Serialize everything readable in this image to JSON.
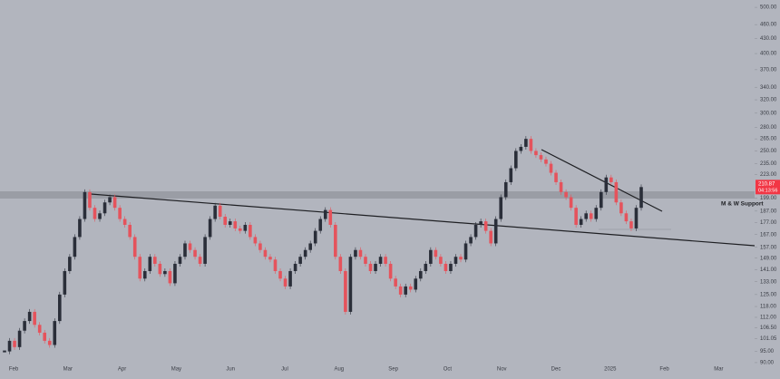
{
  "chart_data": {
    "type": "candlestick",
    "log_scale": true,
    "ylim": [
      85,
      518
    ],
    "yticks": [
      {
        "value": 500,
        "label": "500.00"
      },
      {
        "value": 460,
        "label": "460.00"
      },
      {
        "value": 430,
        "label": "430.00"
      },
      {
        "value": 400,
        "label": "400.00"
      },
      {
        "value": 370,
        "label": "370.00"
      },
      {
        "value": 340,
        "label": "340.00"
      },
      {
        "value": 320,
        "label": "320.00"
      },
      {
        "value": 300,
        "label": "300.00"
      },
      {
        "value": 280,
        "label": "280.00"
      },
      {
        "value": 265,
        "label": "265.00"
      },
      {
        "value": 250,
        "label": "250.00"
      },
      {
        "value": 235,
        "label": "235.00"
      },
      {
        "value": 223,
        "label": "223.00"
      },
      {
        "value": 199,
        "label": "199.00"
      },
      {
        "value": 187,
        "label": "187.00"
      },
      {
        "value": 177,
        "label": "177.00"
      },
      {
        "value": 167,
        "label": "167.00"
      },
      {
        "value": 157,
        "label": "157.00"
      },
      {
        "value": 149,
        "label": "149.00"
      },
      {
        "value": 141,
        "label": "141.00"
      },
      {
        "value": 133,
        "label": "133.00"
      },
      {
        "value": 125,
        "label": "125.00"
      },
      {
        "value": 118,
        "label": "118.00"
      },
      {
        "value": 112,
        "label": "112.00"
      },
      {
        "value": 106.5,
        "label": "106.50"
      },
      {
        "value": 101.05,
        "label": "101.05"
      },
      {
        "value": 95,
        "label": "95.00"
      },
      {
        "value": 90,
        "label": "90.00"
      }
    ],
    "months": [
      "Feb",
      "Mar",
      "Apr",
      "May",
      "Jun",
      "Jul",
      "Aug",
      "Sep",
      "Oct",
      "Nov",
      "Dec",
      "2025",
      "Feb",
      "Mar"
    ],
    "annotation": "M & W Support",
    "price_label": "210.87",
    "countdown": "04:13:56",
    "up_color": "#2a2e39",
    "down_color": "#e5535c",
    "values": [
      95,
      100,
      97,
      105,
      110,
      115,
      108,
      104,
      100,
      98,
      110,
      125,
      140,
      150,
      165,
      180,
      205,
      190,
      180,
      185,
      195,
      200,
      190,
      180,
      175,
      165,
      150,
      135,
      140,
      150,
      145,
      138,
      140,
      132,
      145,
      150,
      160,
      155,
      150,
      145,
      165,
      180,
      192,
      182,
      175,
      178,
      172,
      170,
      175,
      165,
      160,
      155,
      150,
      148,
      140,
      135,
      130,
      140,
      145,
      150,
      155,
      160,
      170,
      180,
      188,
      175,
      150,
      140,
      115,
      150,
      155,
      150,
      145,
      140,
      145,
      150,
      145,
      135,
      130,
      125,
      130,
      128,
      135,
      140,
      145,
      155,
      150,
      145,
      140,
      145,
      150,
      148,
      160,
      165,
      175,
      178,
      170,
      160,
      180,
      200,
      215,
      230,
      250,
      255,
      265,
      250,
      245,
      240,
      235,
      225,
      215,
      205,
      200,
      190,
      175,
      180,
      185,
      180,
      190,
      205,
      220,
      215,
      195,
      185,
      178,
      172,
      190,
      210
    ]
  }
}
